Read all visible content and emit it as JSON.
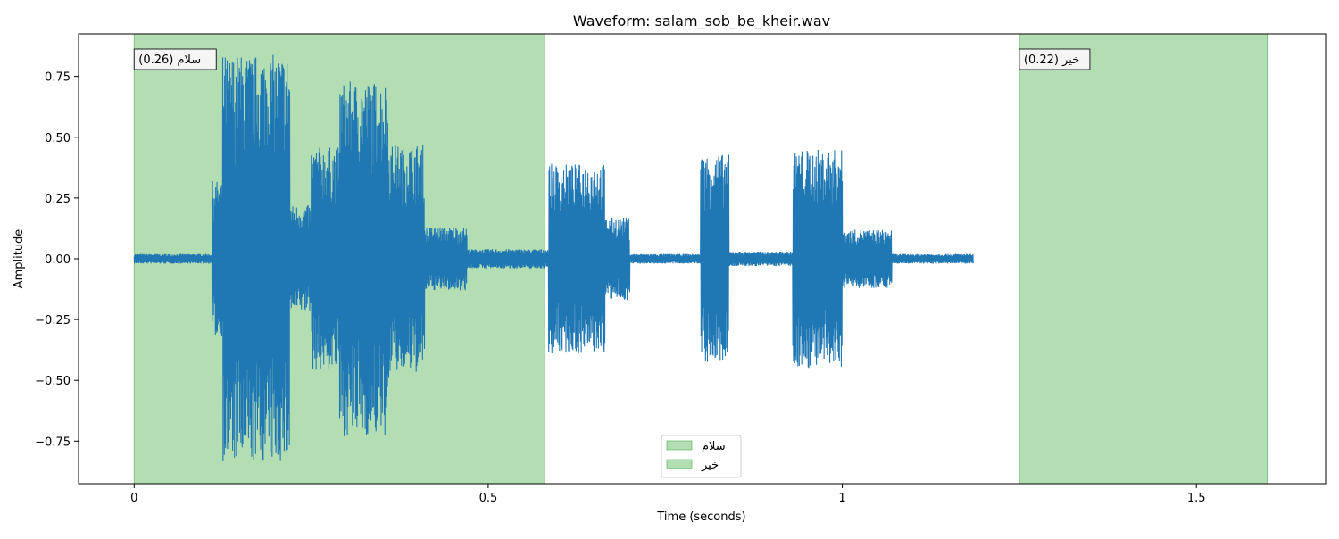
{
  "chart_data": {
    "type": "line",
    "title": "Waveform: salam_sob_be_kheir.wav",
    "xlabel": "Time (seconds)",
    "ylabel": "Amplitude",
    "xlim": [
      -0.0785,
      1.6825
    ],
    "ylim": [
      -0.925,
      0.925
    ],
    "grid": false,
    "x_ticks": [
      0,
      0.5,
      1,
      1.5
    ],
    "x_tick_labels": [
      "0",
      "0.5",
      "1",
      "1.5"
    ],
    "y_ticks": [
      0.75,
      0.5,
      0.25,
      0,
      -0.25,
      -0.5,
      -0.75
    ],
    "y_tick_labels": [
      "0.75",
      "0.50",
      "0.25",
      "0.00",
      "−0.25",
      "−0.50",
      "−0.75"
    ],
    "duration": 1.185,
    "waveform_color": "#1f77b4",
    "highlight_color": "#2ca02c",
    "highlight_opacity": 0.36,
    "envelope": [
      {
        "start": 0.0,
        "end": 0.11,
        "amplitude": 0.02
      },
      {
        "start": 0.11,
        "end": 0.125,
        "amplitude": 0.32
      },
      {
        "start": 0.125,
        "end": 0.22,
        "amplitude": 0.84
      },
      {
        "start": 0.22,
        "end": 0.25,
        "amplitude": 0.22
      },
      {
        "start": 0.25,
        "end": 0.29,
        "amplitude": 0.46
      },
      {
        "start": 0.29,
        "end": 0.36,
        "amplitude": 0.73
      },
      {
        "start": 0.36,
        "end": 0.41,
        "amplitude": 0.47
      },
      {
        "start": 0.41,
        "end": 0.47,
        "amplitude": 0.13
      },
      {
        "start": 0.47,
        "end": 0.585,
        "amplitude": 0.04
      },
      {
        "start": 0.585,
        "end": 0.665,
        "amplitude": 0.39
      },
      {
        "start": 0.665,
        "end": 0.7,
        "amplitude": 0.17
      },
      {
        "start": 0.7,
        "end": 0.8,
        "amplitude": 0.02
      },
      {
        "start": 0.8,
        "end": 0.84,
        "amplitude": 0.43
      },
      {
        "start": 0.84,
        "end": 0.93,
        "amplitude": 0.03
      },
      {
        "start": 0.93,
        "end": 1.0,
        "amplitude": 0.45
      },
      {
        "start": 1.0,
        "end": 1.07,
        "amplitude": 0.12
      },
      {
        "start": 1.07,
        "end": 1.185,
        "amplitude": 0.02
      }
    ],
    "segments": [
      {
        "word": "سلام",
        "score": 0.26,
        "start": 0.0,
        "end": 0.58,
        "label": "سلام (0.26)"
      },
      {
        "word": "خیر",
        "score": 0.22,
        "start": 1.25,
        "end": 1.6,
        "label": "خیر (0.22)"
      }
    ],
    "legend": {
      "placement": "lower center",
      "entries": [
        "سلام",
        "خیر"
      ]
    }
  }
}
